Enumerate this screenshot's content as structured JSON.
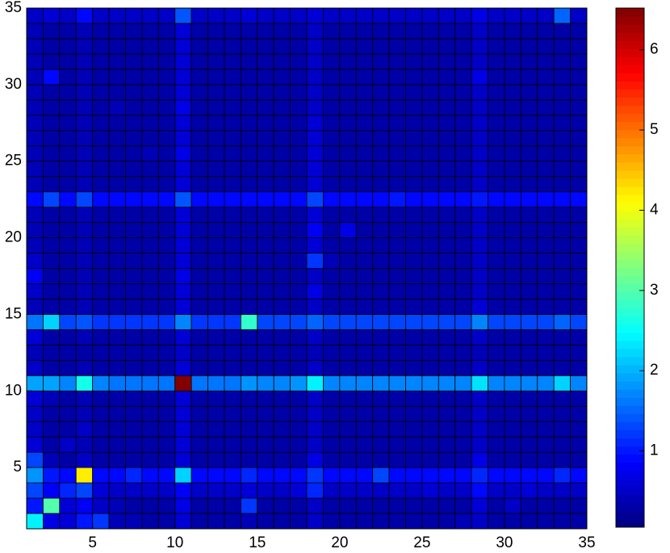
{
  "chart_data": {
    "type": "heatmap",
    "x": [
      1,
      2,
      3,
      4,
      5,
      6,
      7,
      8,
      9,
      10,
      11,
      12,
      13,
      14,
      15,
      16,
      17,
      18,
      19,
      20,
      21,
      22,
      23,
      24,
      25,
      26,
      27,
      28,
      29,
      30,
      31,
      32,
      33,
      34
    ],
    "y": [
      1,
      2,
      3,
      4,
      5,
      6,
      7,
      8,
      9,
      10,
      11,
      12,
      13,
      14,
      15,
      16,
      17,
      18,
      19,
      20,
      21,
      22,
      23,
      24,
      25,
      26,
      27,
      28,
      29,
      30,
      31,
      32,
      33,
      34
    ],
    "xlim": [
      1,
      35
    ],
    "ylim": [
      1,
      35
    ],
    "xticks": [
      5,
      10,
      15,
      20,
      25,
      30,
      35
    ],
    "yticks": [
      5,
      10,
      15,
      20,
      25,
      30,
      35
    ],
    "clim": [
      0.05,
      6.52
    ],
    "cticks": [
      1,
      2,
      3,
      4,
      5,
      6
    ],
    "colormap": "jet",
    "z": [
      [
        2.4,
        0.7,
        0.6,
        1.0,
        1.2,
        0.4,
        0.4,
        0.3,
        0.3,
        0.6,
        0.3,
        0.3,
        0.3,
        0.4,
        0.3,
        0.3,
        0.3,
        0.5,
        0.3,
        0.3,
        0.3,
        0.3,
        0.3,
        0.3,
        0.3,
        0.3,
        0.4,
        0.5,
        0.3,
        0.3,
        0.3,
        0.3,
        0.3,
        0.3
      ],
      [
        1.0,
        3.0,
        0.6,
        0.8,
        0.5,
        0.4,
        0.3,
        0.3,
        0.3,
        0.7,
        0.3,
        0.3,
        0.3,
        1.2,
        0.3,
        0.3,
        0.3,
        0.5,
        0.3,
        0.3,
        0.3,
        0.3,
        0.3,
        0.3,
        0.3,
        0.3,
        0.3,
        0.6,
        0.3,
        0.5,
        0.3,
        0.3,
        0.3,
        0.3
      ],
      [
        1.3,
        0.8,
        1.1,
        1.3,
        0.6,
        0.5,
        0.5,
        0.5,
        0.5,
        0.8,
        0.5,
        0.5,
        0.5,
        0.6,
        0.5,
        0.5,
        0.6,
        1.1,
        0.5,
        0.5,
        0.5,
        0.5,
        0.5,
        0.5,
        0.6,
        0.5,
        0.5,
        0.9,
        0.5,
        0.5,
        0.6,
        0.5,
        0.5,
        0.5
      ],
      [
        1.8,
        1.0,
        0.9,
        4.2,
        0.9,
        0.9,
        1.1,
        0.9,
        0.9,
        2.2,
        0.9,
        0.9,
        0.9,
        1.1,
        0.9,
        0.9,
        0.9,
        1.2,
        0.9,
        0.9,
        0.9,
        1.3,
        0.9,
        0.9,
        0.9,
        0.9,
        0.9,
        1.1,
        0.9,
        0.9,
        0.9,
        0.9,
        1.1,
        0.9
      ],
      [
        1.3,
        0.4,
        0.3,
        0.5,
        0.3,
        0.3,
        0.3,
        0.3,
        0.3,
        0.6,
        0.3,
        0.3,
        0.3,
        0.3,
        0.3,
        0.3,
        0.3,
        0.7,
        0.3,
        0.3,
        0.3,
        0.3,
        0.3,
        0.3,
        0.3,
        0.3,
        0.3,
        0.7,
        0.3,
        0.3,
        0.3,
        0.3,
        0.3,
        0.3
      ],
      [
        0.6,
        0.3,
        0.5,
        0.4,
        0.3,
        0.3,
        0.3,
        0.3,
        0.3,
        0.6,
        0.3,
        0.3,
        0.3,
        0.3,
        0.3,
        0.3,
        0.3,
        0.5,
        0.3,
        0.3,
        0.3,
        0.3,
        0.3,
        0.3,
        0.3,
        0.3,
        0.3,
        0.5,
        0.3,
        0.3,
        0.3,
        0.3,
        0.3,
        0.3
      ],
      [
        0.5,
        0.3,
        0.3,
        0.5,
        0.3,
        0.3,
        0.3,
        0.3,
        0.3,
        0.6,
        0.3,
        0.3,
        0.3,
        0.3,
        0.3,
        0.3,
        0.3,
        0.5,
        0.3,
        0.3,
        0.3,
        0.3,
        0.3,
        0.3,
        0.3,
        0.3,
        0.3,
        0.5,
        0.3,
        0.3,
        0.3,
        0.3,
        0.3,
        0.3
      ],
      [
        0.5,
        0.3,
        0.3,
        0.4,
        0.3,
        0.3,
        0.3,
        0.3,
        0.3,
        0.6,
        0.3,
        0.3,
        0.3,
        0.3,
        0.3,
        0.3,
        0.3,
        0.5,
        0.3,
        0.3,
        0.3,
        0.3,
        0.3,
        0.3,
        0.3,
        0.3,
        0.3,
        0.5,
        0.3,
        0.3,
        0.3,
        0.3,
        0.3,
        0.3
      ],
      [
        0.6,
        0.4,
        0.3,
        0.4,
        0.3,
        0.3,
        0.3,
        0.3,
        0.3,
        0.6,
        0.3,
        0.3,
        0.3,
        0.3,
        0.3,
        0.3,
        0.3,
        0.5,
        0.3,
        0.3,
        0.3,
        0.3,
        0.3,
        0.3,
        0.3,
        0.3,
        0.3,
        0.5,
        0.3,
        0.3,
        0.3,
        0.3,
        0.3,
        0.3
      ],
      [
        1.9,
        1.9,
        1.7,
        2.6,
        1.7,
        1.6,
        1.6,
        1.6,
        1.6,
        6.5,
        1.6,
        1.6,
        1.6,
        1.8,
        1.7,
        1.7,
        1.8,
        2.4,
        1.7,
        1.7,
        1.7,
        1.7,
        1.7,
        1.7,
        1.7,
        1.7,
        1.7,
        2.3,
        1.7,
        1.7,
        1.7,
        1.7,
        2.2,
        1.7
      ],
      [
        0.5,
        0.3,
        0.3,
        0.4,
        0.3,
        0.3,
        0.3,
        0.3,
        0.3,
        0.6,
        0.3,
        0.3,
        0.3,
        0.3,
        0.3,
        0.3,
        0.3,
        0.5,
        0.3,
        0.3,
        0.3,
        0.3,
        0.3,
        0.3,
        0.3,
        0.3,
        0.3,
        0.5,
        0.3,
        0.3,
        0.3,
        0.3,
        0.3,
        0.3
      ],
      [
        0.4,
        0.3,
        0.3,
        0.3,
        0.3,
        0.3,
        0.3,
        0.3,
        0.3,
        0.5,
        0.3,
        0.3,
        0.3,
        0.3,
        0.3,
        0.3,
        0.3,
        0.4,
        0.3,
        0.3,
        0.3,
        0.3,
        0.3,
        0.3,
        0.3,
        0.3,
        0.3,
        0.4,
        0.3,
        0.3,
        0.3,
        0.3,
        0.3,
        0.3
      ],
      [
        0.6,
        0.3,
        0.3,
        0.4,
        0.3,
        0.3,
        0.3,
        0.3,
        0.3,
        0.6,
        0.3,
        0.3,
        0.3,
        0.3,
        0.3,
        0.3,
        0.3,
        0.5,
        0.3,
        0.3,
        0.3,
        0.3,
        0.3,
        0.3,
        0.3,
        0.3,
        0.3,
        0.5,
        0.3,
        0.3,
        0.3,
        0.3,
        0.3,
        0.3
      ],
      [
        1.6,
        2.2,
        1.3,
        1.4,
        1.2,
        1.2,
        1.2,
        1.2,
        1.2,
        1.7,
        1.2,
        1.2,
        1.2,
        2.8,
        1.3,
        1.3,
        1.3,
        1.5,
        1.3,
        1.3,
        1.3,
        1.3,
        1.3,
        1.3,
        1.3,
        1.3,
        1.3,
        1.7,
        1.3,
        1.3,
        1.3,
        1.3,
        1.5,
        1.3
      ],
      [
        0.4,
        0.3,
        0.3,
        0.4,
        0.3,
        0.3,
        0.3,
        0.3,
        0.3,
        0.6,
        0.3,
        0.3,
        0.3,
        0.3,
        0.3,
        0.3,
        0.3,
        0.5,
        0.3,
        0.3,
        0.3,
        0.3,
        0.3,
        0.3,
        0.3,
        0.3,
        0.3,
        0.6,
        0.3,
        0.3,
        0.3,
        0.3,
        0.3,
        0.3
      ],
      [
        0.5,
        0.3,
        0.3,
        0.4,
        0.3,
        0.3,
        0.3,
        0.3,
        0.3,
        0.6,
        0.3,
        0.3,
        0.3,
        0.3,
        0.3,
        0.3,
        0.3,
        0.7,
        0.3,
        0.3,
        0.3,
        0.3,
        0.3,
        0.3,
        0.3,
        0.3,
        0.3,
        0.5,
        0.3,
        0.3,
        0.3,
        0.3,
        0.3,
        0.3
      ],
      [
        0.8,
        0.3,
        0.3,
        0.4,
        0.3,
        0.3,
        0.3,
        0.3,
        0.3,
        0.7,
        0.3,
        0.3,
        0.3,
        0.3,
        0.3,
        0.3,
        0.3,
        0.5,
        0.3,
        0.3,
        0.3,
        0.3,
        0.3,
        0.3,
        0.3,
        0.3,
        0.3,
        0.5,
        0.3,
        0.3,
        0.3,
        0.3,
        0.3,
        0.3
      ],
      [
        0.5,
        0.3,
        0.3,
        0.4,
        0.3,
        0.3,
        0.3,
        0.3,
        0.3,
        0.6,
        0.3,
        0.3,
        0.3,
        0.3,
        0.3,
        0.3,
        0.3,
        1.2,
        0.4,
        0.3,
        0.3,
        0.3,
        0.3,
        0.3,
        0.3,
        0.3,
        0.3,
        0.5,
        0.3,
        0.3,
        0.3,
        0.3,
        0.3,
        0.3
      ],
      [
        0.4,
        0.3,
        0.3,
        0.4,
        0.3,
        0.3,
        0.3,
        0.3,
        0.3,
        0.6,
        0.3,
        0.3,
        0.3,
        0.3,
        0.3,
        0.3,
        0.3,
        0.6,
        0.3,
        0.3,
        0.3,
        0.3,
        0.3,
        0.3,
        0.3,
        0.3,
        0.3,
        0.5,
        0.3,
        0.3,
        0.3,
        0.3,
        0.3,
        0.3
      ],
      [
        0.4,
        0.3,
        0.3,
        0.4,
        0.3,
        0.3,
        0.3,
        0.3,
        0.3,
        0.6,
        0.3,
        0.3,
        0.3,
        0.3,
        0.3,
        0.3,
        0.3,
        0.8,
        0.3,
        0.7,
        0.3,
        0.3,
        0.3,
        0.3,
        0.3,
        0.3,
        0.3,
        0.5,
        0.3,
        0.3,
        0.3,
        0.3,
        0.3,
        0.3
      ],
      [
        0.4,
        0.3,
        0.3,
        0.4,
        0.3,
        0.3,
        0.3,
        0.3,
        0.3,
        0.6,
        0.3,
        0.3,
        0.3,
        0.3,
        0.3,
        0.3,
        0.3,
        0.6,
        0.3,
        0.3,
        0.3,
        0.3,
        0.3,
        0.3,
        0.3,
        0.3,
        0.3,
        0.5,
        0.3,
        0.3,
        0.3,
        0.3,
        0.3,
        0.3
      ],
      [
        0.9,
        1.3,
        0.9,
        1.3,
        0.9,
        0.9,
        0.9,
        0.9,
        0.9,
        1.4,
        0.9,
        0.9,
        0.9,
        0.9,
        0.9,
        0.9,
        0.9,
        1.3,
        0.9,
        0.9,
        0.9,
        0.9,
        1.0,
        0.9,
        0.9,
        0.9,
        0.9,
        1.0,
        0.9,
        0.9,
        0.9,
        0.9,
        0.9,
        0.9
      ],
      [
        0.4,
        0.3,
        0.3,
        0.4,
        0.3,
        0.3,
        0.3,
        0.3,
        0.3,
        0.6,
        0.3,
        0.3,
        0.3,
        0.3,
        0.3,
        0.3,
        0.3,
        0.6,
        0.3,
        0.3,
        0.3,
        0.3,
        0.3,
        0.3,
        0.3,
        0.3,
        0.3,
        0.5,
        0.3,
        0.3,
        0.3,
        0.3,
        0.3,
        0.3
      ],
      [
        0.4,
        0.3,
        0.3,
        0.4,
        0.3,
        0.3,
        0.3,
        0.3,
        0.3,
        0.6,
        0.3,
        0.3,
        0.3,
        0.3,
        0.3,
        0.3,
        0.3,
        0.6,
        0.3,
        0.3,
        0.3,
        0.3,
        0.3,
        0.3,
        0.3,
        0.3,
        0.3,
        0.5,
        0.3,
        0.3,
        0.3,
        0.3,
        0.3,
        0.3
      ],
      [
        0.4,
        0.3,
        0.3,
        0.4,
        0.3,
        0.3,
        0.3,
        0.4,
        0.3,
        0.7,
        0.3,
        0.3,
        0.3,
        0.3,
        0.3,
        0.3,
        0.3,
        0.6,
        0.3,
        0.3,
        0.3,
        0.3,
        0.3,
        0.3,
        0.3,
        0.3,
        0.3,
        0.5,
        0.3,
        0.3,
        0.3,
        0.3,
        0.3,
        0.3
      ],
      [
        0.4,
        0.3,
        0.3,
        0.4,
        0.3,
        0.3,
        0.3,
        0.3,
        0.3,
        0.6,
        0.3,
        0.3,
        0.3,
        0.3,
        0.3,
        0.3,
        0.3,
        0.6,
        0.3,
        0.3,
        0.3,
        0.3,
        0.3,
        0.3,
        0.3,
        0.3,
        0.3,
        0.5,
        0.3,
        0.3,
        0.3,
        0.3,
        0.3,
        0.3
      ],
      [
        0.4,
        0.3,
        0.3,
        0.4,
        0.3,
        0.3,
        0.3,
        0.3,
        0.3,
        0.6,
        0.3,
        0.3,
        0.3,
        0.3,
        0.3,
        0.3,
        0.3,
        0.6,
        0.3,
        0.3,
        0.3,
        0.3,
        0.3,
        0.3,
        0.3,
        0.3,
        0.3,
        0.5,
        0.3,
        0.3,
        0.3,
        0.3,
        0.3,
        0.3
      ],
      [
        0.4,
        0.3,
        0.3,
        0.4,
        0.3,
        0.4,
        0.3,
        0.3,
        0.3,
        0.7,
        0.3,
        0.3,
        0.3,
        0.3,
        0.3,
        0.3,
        0.3,
        0.5,
        0.3,
        0.3,
        0.3,
        0.3,
        0.3,
        0.3,
        0.3,
        0.3,
        0.3,
        0.5,
        0.3,
        0.3,
        0.3,
        0.3,
        0.3,
        0.3
      ],
      [
        0.4,
        0.3,
        0.3,
        0.4,
        0.3,
        0.3,
        0.3,
        0.3,
        0.3,
        0.6,
        0.3,
        0.3,
        0.3,
        0.3,
        0.3,
        0.3,
        0.3,
        0.5,
        0.3,
        0.3,
        0.3,
        0.3,
        0.3,
        0.3,
        0.3,
        0.3,
        0.3,
        0.5,
        0.3,
        0.3,
        0.3,
        0.3,
        0.3,
        0.3
      ],
      [
        0.4,
        0.9,
        0.3,
        0.4,
        0.3,
        0.3,
        0.3,
        0.3,
        0.3,
        0.6,
        0.3,
        0.3,
        0.3,
        0.3,
        0.3,
        0.3,
        0.3,
        0.5,
        0.3,
        0.3,
        0.3,
        0.3,
        0.3,
        0.3,
        0.3,
        0.3,
        0.3,
        0.7,
        0.3,
        0.3,
        0.3,
        0.3,
        0.3,
        0.3
      ],
      [
        0.4,
        0.3,
        0.3,
        0.4,
        0.3,
        0.3,
        0.3,
        0.3,
        0.3,
        0.6,
        0.3,
        0.3,
        0.3,
        0.3,
        0.3,
        0.3,
        0.3,
        0.5,
        0.3,
        0.3,
        0.3,
        0.3,
        0.3,
        0.3,
        0.3,
        0.3,
        0.3,
        0.5,
        0.3,
        0.3,
        0.3,
        0.3,
        0.3,
        0.3
      ],
      [
        0.4,
        0.3,
        0.3,
        0.4,
        0.3,
        0.3,
        0.3,
        0.3,
        0.3,
        0.6,
        0.3,
        0.3,
        0.3,
        0.3,
        0.3,
        0.3,
        0.3,
        0.5,
        0.3,
        0.3,
        0.3,
        0.3,
        0.3,
        0.3,
        0.3,
        0.3,
        0.3,
        0.5,
        0.3,
        0.3,
        0.3,
        0.3,
        0.3,
        0.3
      ],
      [
        0.4,
        0.3,
        0.3,
        0.4,
        0.3,
        0.3,
        0.3,
        0.3,
        0.3,
        0.6,
        0.3,
        0.3,
        0.3,
        0.3,
        0.3,
        0.3,
        0.3,
        0.5,
        0.3,
        0.3,
        0.3,
        0.3,
        0.3,
        0.3,
        0.3,
        0.3,
        0.3,
        0.5,
        0.3,
        0.3,
        0.3,
        0.3,
        0.3,
        0.3
      ],
      [
        0.5,
        0.6,
        0.5,
        0.9,
        0.5,
        0.5,
        0.5,
        0.5,
        0.5,
        1.4,
        0.5,
        0.5,
        0.5,
        0.6,
        0.5,
        0.5,
        0.5,
        0.6,
        0.5,
        0.5,
        0.5,
        0.5,
        0.5,
        0.5,
        0.5,
        0.5,
        0.5,
        0.7,
        0.5,
        0.5,
        0.5,
        0.5,
        1.5,
        0.5
      ]
    ]
  }
}
